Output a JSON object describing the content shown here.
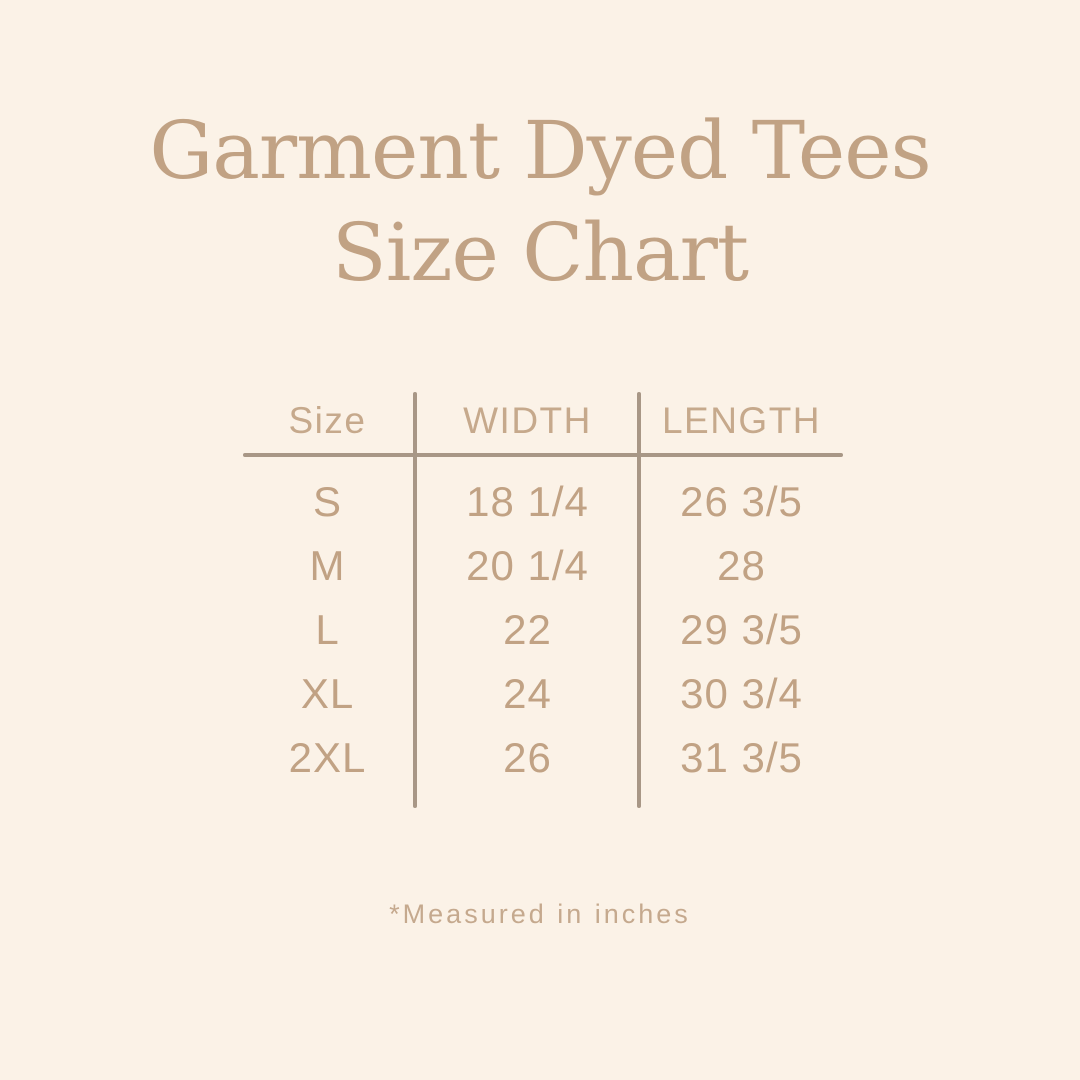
{
  "colors": {
    "bg": "#FBF2E7",
    "text": "#C1A284",
    "line": "#A89786"
  },
  "title": {
    "line1": "Garment Dyed Tees",
    "line2": "Size Chart"
  },
  "chart_data": {
    "type": "table",
    "title": "Garment Dyed Tees Size Chart",
    "columns": [
      "Size",
      "WIDTH",
      "LENGTH"
    ],
    "rows": [
      [
        "S",
        "18 1/4",
        "26 3/5"
      ],
      [
        "M",
        "20 1/4",
        "28"
      ],
      [
        "L",
        "22",
        "29 3/5"
      ],
      [
        "XL",
        "24",
        "30 3/4"
      ],
      [
        "2XL",
        "26",
        "31 3/5"
      ]
    ],
    "note": "*Measured in inches",
    "units": "inches"
  }
}
